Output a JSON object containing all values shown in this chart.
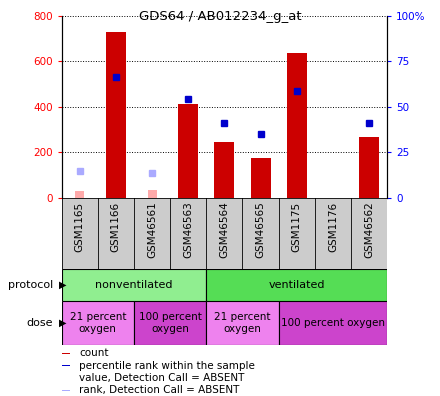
{
  "title": "GDS64 / AB012234_g_at",
  "samples": [
    "GSM1165",
    "GSM1166",
    "GSM46561",
    "GSM46563",
    "GSM46564",
    "GSM46565",
    "GSM1175",
    "GSM1176",
    "GSM46562"
  ],
  "count_values": [
    null,
    730,
    null,
    415,
    245,
    175,
    635,
    null,
    270
  ],
  "rank_values": [
    null,
    530,
    null,
    435,
    330,
    280,
    470,
    null,
    330
  ],
  "absent_count": [
    30,
    null,
    35,
    null,
    null,
    null,
    null,
    null,
    null
  ],
  "absent_rank": [
    120,
    null,
    110,
    null,
    null,
    null,
    null,
    null,
    null
  ],
  "protocol_groups": [
    {
      "label": "nonventilated",
      "start": 0,
      "end": 4,
      "color": "#90ee90"
    },
    {
      "label": "ventilated",
      "start": 4,
      "end": 9,
      "color": "#55dd55"
    }
  ],
  "dose_groups": [
    {
      "label": "21 percent\noxygen",
      "start": 0,
      "end": 2,
      "color": "#ee82ee"
    },
    {
      "label": "100 percent\noxygen",
      "start": 2,
      "end": 4,
      "color": "#cc44cc"
    },
    {
      "label": "21 percent\noxygen",
      "start": 4,
      "end": 6,
      "color": "#ee82ee"
    },
    {
      "label": "100 percent oxygen",
      "start": 6,
      "end": 9,
      "color": "#cc44cc"
    }
  ],
  "ylim_left": [
    0,
    800
  ],
  "ylim_right": [
    0,
    100
  ],
  "yticks_left": [
    0,
    200,
    400,
    600,
    800
  ],
  "yticks_right": [
    0,
    25,
    50,
    75,
    100
  ],
  "ytick_labels_right": [
    "0",
    "25",
    "50",
    "75",
    "100%"
  ],
  "bar_color": "#cc0000",
  "rank_color": "#0000cc",
  "absent_bar_color": "#ffaaaa",
  "absent_rank_color": "#aaaaff",
  "legend_items": [
    {
      "color": "#cc0000",
      "label": "count"
    },
    {
      "color": "#0000cc",
      "label": "percentile rank within the sample"
    },
    {
      "color": "#ffaaaa",
      "label": "value, Detection Call = ABSENT"
    },
    {
      "color": "#aaaaff",
      "label": "rank, Detection Call = ABSENT"
    }
  ]
}
